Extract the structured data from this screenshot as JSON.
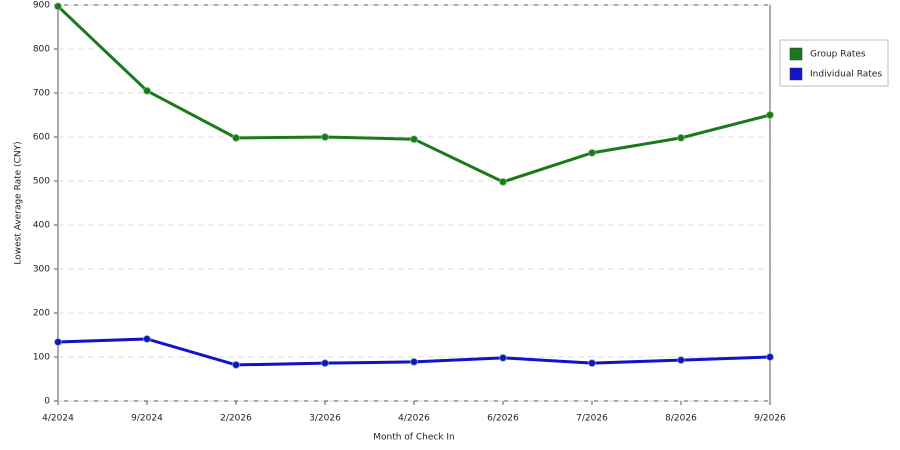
{
  "chart_data": {
    "type": "line",
    "x_label": "Month of Check In",
    "y_label": "Lowest Average Rate (CNY)",
    "categories": [
      "4/2024",
      "9/2024",
      "2/2026",
      "3/2026",
      "4/2026",
      "6/2026",
      "7/2026",
      "8/2026",
      "9/2026"
    ],
    "series": [
      {
        "name": "Group Rates",
        "color": "#1a7a1a",
        "values": [
          897,
          705,
          598,
          600,
          595,
          498,
          564,
          598,
          650
        ]
      },
      {
        "name": "Individual Rates",
        "color": "#1212c8",
        "values": [
          134,
          141,
          82,
          86,
          89,
          98,
          86,
          93,
          100
        ]
      }
    ],
    "ylim": [
      0,
      900
    ],
    "yticks": [
      0,
      100,
      200,
      300,
      400,
      500,
      600,
      700,
      800,
      900
    ],
    "grid": true,
    "legend": "upper right"
  }
}
